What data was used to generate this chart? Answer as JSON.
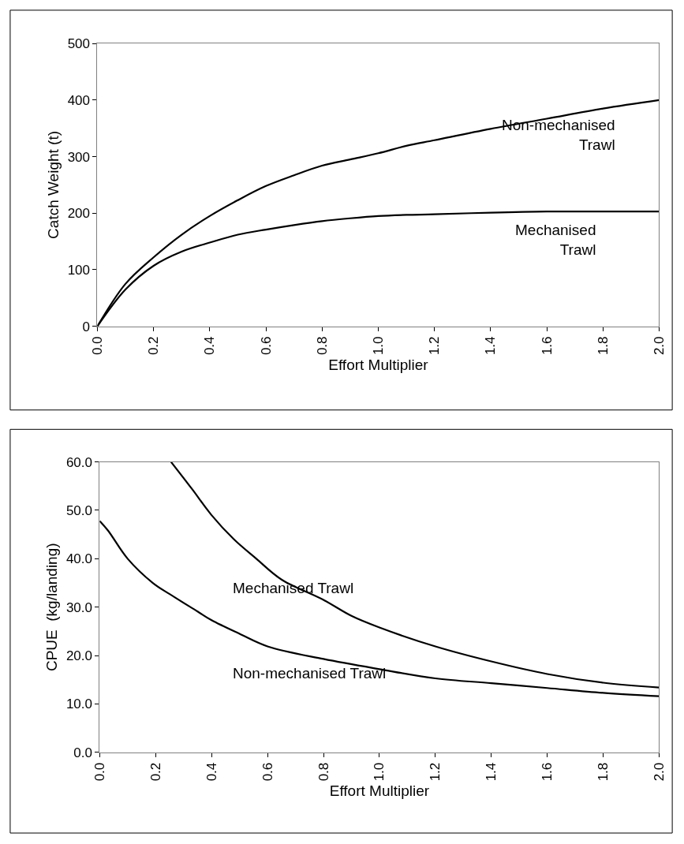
{
  "chart_data": [
    {
      "type": "line",
      "xlabel": "Effort Multiplier",
      "ylabel": "Catch Weight (t)",
      "xlim": [
        0,
        2
      ],
      "ylim": [
        0,
        500
      ],
      "xticks": [
        {
          "value": 0,
          "label": "0.0"
        },
        {
          "value": 0.2,
          "label": "0.2"
        },
        {
          "value": 0.4,
          "label": "0.4"
        },
        {
          "value": 0.6,
          "label": "0.6"
        },
        {
          "value": 0.8,
          "label": "0.8"
        },
        {
          "value": 1.0,
          "label": "1.0"
        },
        {
          "value": 1.2,
          "label": "1.2"
        },
        {
          "value": 1.4,
          "label": "1.4"
        },
        {
          "value": 1.6,
          "label": "1.6"
        },
        {
          "value": 1.8,
          "label": "1.8"
        },
        {
          "value": 2.0,
          "label": "2.0"
        }
      ],
      "yticks": [
        0,
        100,
        200,
        300,
        400,
        500
      ],
      "x": [
        0,
        0.1,
        0.2,
        0.3,
        0.4,
        0.5,
        0.6,
        0.7,
        0.8,
        0.9,
        1.0,
        1.1,
        1.2,
        1.4,
        1.6,
        1.8,
        2.0
      ],
      "series": [
        {
          "name": "Non-mechanised Trawl",
          "color": "#000000",
          "values": [
            0,
            75,
            122,
            162,
            195,
            223,
            248,
            267,
            284,
            295,
            306,
            319,
            329,
            349,
            367,
            385,
            400
          ]
        },
        {
          "name": "Mechanised Trawl",
          "color": "#000000",
          "values": [
            0,
            65,
            107,
            132,
            148,
            162,
            171,
            179,
            186,
            191,
            195,
            197,
            198,
            201,
            203,
            203,
            203
          ]
        }
      ]
    },
    {
      "type": "line",
      "xlabel": "Effort Multiplier",
      "ylabel": "CPUE  (kg/landing)",
      "xlim": [
        0,
        2
      ],
      "ylim": [
        0,
        60
      ],
      "xticks": [
        {
          "value": 0,
          "label": "0.0"
        },
        {
          "value": 0.2,
          "label": "0.2"
        },
        {
          "value": 0.4,
          "label": "0.4"
        },
        {
          "value": 0.6,
          "label": "0.6"
        },
        {
          "value": 0.8,
          "label": "0.8"
        },
        {
          "value": 1.0,
          "label": "1.0"
        },
        {
          "value": 1.2,
          "label": "1.2"
        },
        {
          "value": 1.4,
          "label": "1.4"
        },
        {
          "value": 1.6,
          "label": "1.6"
        },
        {
          "value": 1.8,
          "label": "1.8"
        },
        {
          "value": 2.0,
          "label": "2.0"
        }
      ],
      "yticks": [
        {
          "value": 0,
          "label": "0.0"
        },
        {
          "value": 10,
          "label": "10.0"
        },
        {
          "value": 20,
          "label": "20.0"
        },
        {
          "value": 30,
          "label": "30.0"
        },
        {
          "value": 40,
          "label": "40.0"
        },
        {
          "value": 50,
          "label": "50.0"
        },
        {
          "value": 60,
          "label": "60.0"
        }
      ],
      "series": [
        {
          "name": "Mechanised Trawl",
          "color": "#000000",
          "x": [
            0.255,
            0.33,
            0.4,
            0.48,
            0.56,
            0.65,
            0.8,
            0.9,
            1.0,
            1.2,
            1.4,
            1.6,
            1.8,
            2.0
          ],
          "values": [
            60,
            54.4,
            49,
            44,
            40,
            35.7,
            31.5,
            28.2,
            25.8,
            21.9,
            18.8,
            16.2,
            14.4,
            13.4
          ]
        },
        {
          "name": "Non-mechanised Trawl",
          "color": "#000000",
          "x": [
            0,
            0.03,
            0.1,
            0.19,
            0.25,
            0.35,
            0.4,
            0.5,
            0.6,
            0.8,
            1.0,
            1.2,
            1.4,
            1.6,
            1.8,
            2.0
          ],
          "values": [
            47.8,
            45.8,
            40,
            35,
            32.7,
            29.1,
            27.3,
            24.5,
            21.9,
            19.3,
            17.2,
            15.3,
            14.3,
            13.3,
            12.3,
            11.6
          ]
        }
      ]
    }
  ]
}
